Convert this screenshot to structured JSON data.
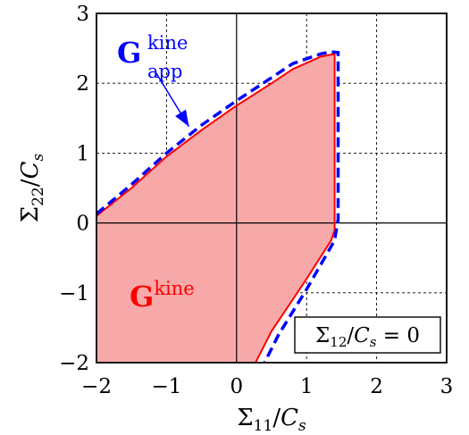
{
  "chart_data": {
    "type": "area",
    "xlabel": "Σ11/Cs",
    "ylabel": "Σ22/Cs",
    "xlim": [
      -2,
      3
    ],
    "ylim": [
      -2,
      3
    ],
    "x_ticks": [
      "−2",
      "−1",
      "0",
      "1",
      "2",
      "3"
    ],
    "y_ticks": [
      "−2",
      "−1",
      "0",
      "1",
      "2",
      "3"
    ],
    "grid": true,
    "grid_style": "dotted",
    "annotation_box": "Σ12/Cs = 0",
    "series": [
      {
        "name": "G^kine",
        "label_main": "G",
        "label_sup": "kine",
        "style": "filled-solid",
        "color": "#ff0000",
        "fill": "#f7a9a9",
        "points": [
          [
            -2.0,
            0.1
          ],
          [
            -1.5,
            0.5
          ],
          [
            -1.0,
            0.95
          ],
          [
            -0.5,
            1.33
          ],
          [
            0.0,
            1.68
          ],
          [
            0.5,
            2.0
          ],
          [
            0.8,
            2.2
          ],
          [
            1.2,
            2.38
          ],
          [
            1.4,
            2.42
          ],
          [
            1.4,
            -0.1
          ],
          [
            1.35,
            -0.25
          ],
          [
            1.0,
            -0.8
          ],
          [
            0.5,
            -1.55
          ],
          [
            0.27,
            -2.0
          ],
          [
            -2.0,
            -2.0
          ]
        ]
      },
      {
        "name": "G_app^kine",
        "label_main": "G",
        "label_sup": "kine",
        "label_sub": "app",
        "style": "dashed",
        "color": "#0000ff",
        "points": [
          [
            -2.0,
            0.13
          ],
          [
            -1.5,
            0.55
          ],
          [
            -1.0,
            1.0
          ],
          [
            -0.5,
            1.4
          ],
          [
            0.0,
            1.75
          ],
          [
            0.5,
            2.08
          ],
          [
            0.8,
            2.28
          ],
          [
            1.2,
            2.42
          ],
          [
            1.35,
            2.45
          ],
          [
            1.45,
            2.44
          ],
          [
            1.45,
            0.05
          ],
          [
            1.4,
            -0.25
          ],
          [
            1.0,
            -0.95
          ],
          [
            0.6,
            -1.6
          ],
          [
            0.4,
            -2.0
          ]
        ]
      }
    ],
    "arrow": {
      "from": [
        -1.15,
        2.15
      ],
      "to": [
        -0.68,
        1.38
      ],
      "color": "#0000ff"
    }
  }
}
